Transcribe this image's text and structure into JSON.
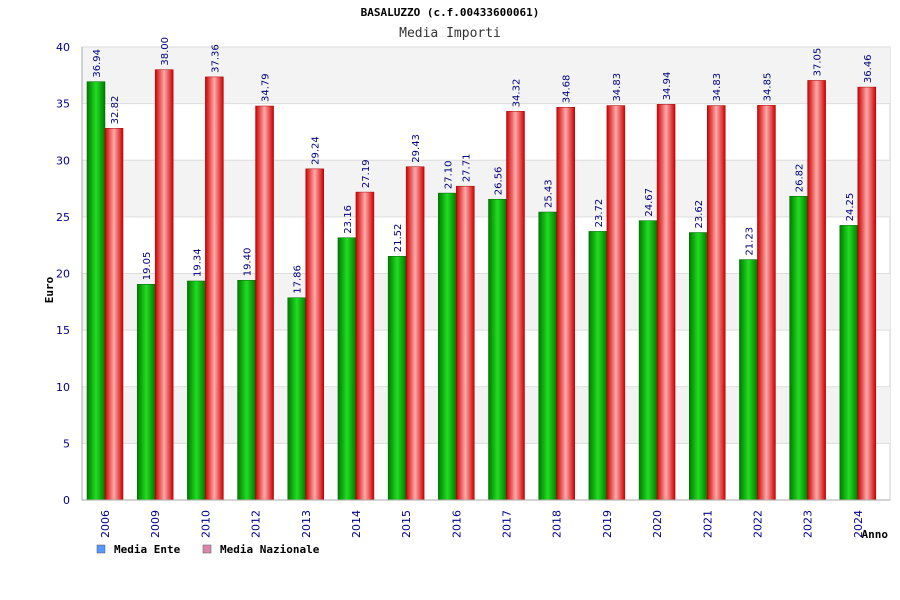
{
  "chart_data": {
    "type": "bar",
    "title": "BASALUZZO (c.f.00433600061)",
    "subtitle": "Media Importi",
    "xlabel": "Anno",
    "ylabel": "Euro",
    "ylim": [
      0,
      40
    ],
    "yticks": [
      "0",
      "5",
      "10",
      "15",
      "20",
      "25",
      "30",
      "35",
      "40"
    ],
    "grid": true,
    "legend_position": "bottom-left",
    "categories": [
      "2006",
      "2009",
      "2010",
      "2012",
      "2013",
      "2014",
      "2015",
      "2016",
      "2017",
      "2018",
      "2019",
      "2020",
      "2021",
      "2022",
      "2023",
      "2024"
    ],
    "series": [
      {
        "name": "Media Ente",
        "color": "#00aa00",
        "legend_color": "#5599ff",
        "values": [
          36.94,
          19.05,
          19.34,
          19.4,
          17.86,
          23.16,
          21.52,
          27.1,
          26.56,
          25.43,
          23.72,
          24.67,
          23.62,
          21.23,
          26.82,
          24.25
        ],
        "labels": [
          "36.94",
          "19.05",
          "19.34",
          "19.40",
          "17.86",
          "23.16",
          "21.52",
          "27.10",
          "26.56",
          "25.43",
          "23.72",
          "24.67",
          "23.62",
          "21.23",
          "26.82",
          "24.25"
        ]
      },
      {
        "name": "Media Nazionale",
        "color": "#ee1111",
        "legend_color": "#dd88aa",
        "values": [
          32.82,
          38.0,
          37.36,
          34.79,
          29.24,
          27.19,
          29.43,
          27.71,
          34.32,
          34.68,
          34.83,
          34.94,
          34.83,
          34.85,
          37.05,
          36.46
        ],
        "labels": [
          "32.82",
          "38.00",
          "37.36",
          "34.79",
          "29.24",
          "27.19",
          "29.43",
          "27.71",
          "34.32",
          "34.68",
          "34.83",
          "34.94",
          "34.83",
          "34.85",
          "37.05",
          "36.46"
        ]
      }
    ]
  }
}
